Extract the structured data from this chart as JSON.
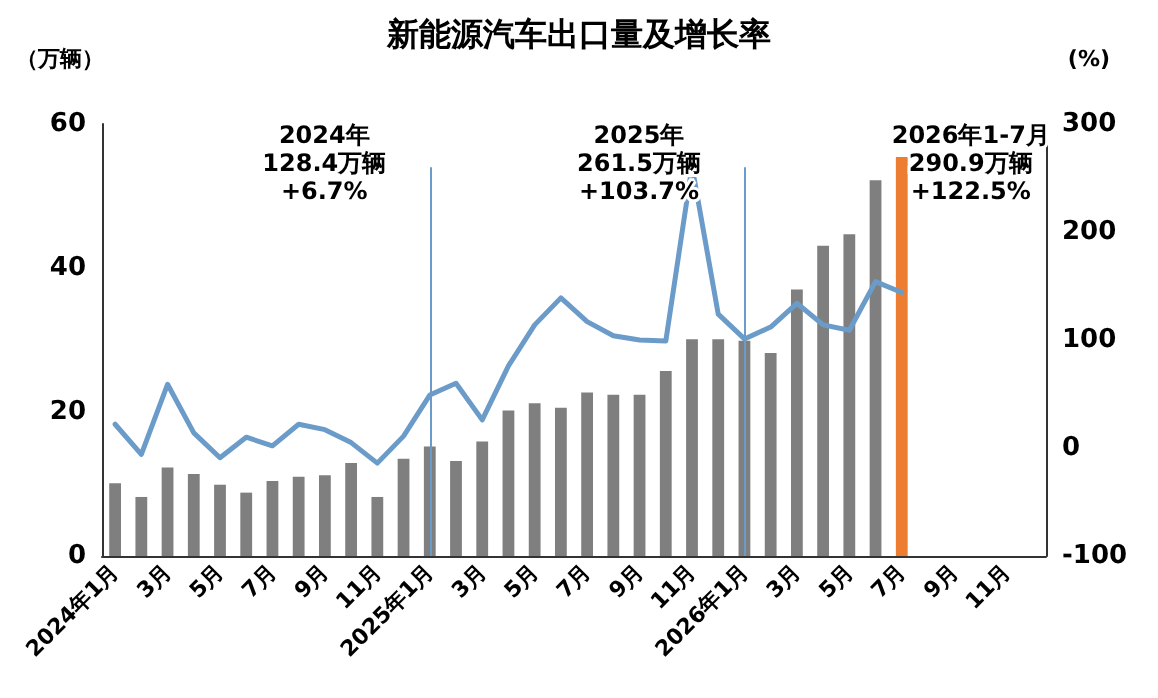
{
  "chart_data": {
    "type": "bar",
    "title": "新能源汽车出口量及增长率",
    "ylabel": "（万辆）",
    "y2label": "(%)",
    "categories": [
      "2024年1月",
      null,
      "3月",
      null,
      "5月",
      null,
      "7月",
      null,
      "9月",
      null,
      "11月",
      null,
      "2025年1月",
      null,
      "3月",
      null,
      "5月",
      null,
      "7月",
      null,
      "9月",
      null,
      "11月",
      null,
      "2026年1月",
      null,
      "3月",
      null,
      "5月",
      null,
      "7月",
      null,
      "9月",
      null,
      "11月",
      null
    ],
    "series": [
      {
        "color": "#7f7f7f",
        "colors": [
          "#7f7f7f",
          "#7f7f7f",
          "#7f7f7f",
          "#7f7f7f",
          "#7f7f7f",
          "#7f7f7f",
          "#7f7f7f",
          "#7f7f7f",
          "#7f7f7f",
          "#7f7f7f",
          "#7f7f7f",
          "#7f7f7f",
          "#7f7f7f",
          "#7f7f7f",
          "#7f7f7f",
          "#7f7f7f",
          "#7f7f7f",
          "#7f7f7f",
          "#7f7f7f",
          "#7f7f7f",
          "#7f7f7f",
          "#7f7f7f",
          "#7f7f7f",
          "#7f7f7f",
          "#7f7f7f",
          "#7f7f7f",
          "#7f7f7f",
          "#7f7f7f",
          "#7f7f7f",
          "#7f7f7f",
          "#ed7d31",
          null,
          null,
          null,
          null,
          null
        ],
        "values": [
          10.1,
          8.2,
          12.3,
          11.4,
          9.9,
          8.8,
          10.4,
          11.0,
          11.2,
          12.9,
          8.2,
          13.5,
          15.2,
          13.2,
          15.9,
          20.2,
          21.2,
          20.6,
          22.7,
          22.4,
          22.4,
          25.7,
          30.1,
          30.1,
          29.9,
          28.2,
          37.0,
          43.1,
          44.7,
          52.2,
          55.4,
          null,
          null,
          null,
          null,
          null
        ]
      },
      {
        "type": "line",
        "axis": "y2",
        "color": "#6b9bc9",
        "values": [
          22,
          -6,
          59,
          14,
          -9,
          10,
          2,
          22,
          17,
          5,
          -14,
          11,
          49,
          60,
          26,
          76,
          114,
          139,
          117,
          104,
          100,
          99,
          261,
          124,
          101,
          112,
          134,
          114,
          109,
          154,
          144,
          null,
          null,
          null,
          null,
          null
        ]
      }
    ],
    "ylim": [
      0,
      60
    ],
    "yticks": [
      0,
      20,
      40,
      60
    ],
    "y2lim": [
      -100,
      300
    ],
    "y2ticks": [
      -100,
      0,
      100,
      200,
      300
    ],
    "ref_lines": [
      {
        "axis": "x",
        "value": "2025年1月",
        "color": "#6b9bc9"
      },
      {
        "axis": "x",
        "value": "2026年1月",
        "color": "#6b9bc9"
      }
    ],
    "annotations": [
      "2024年\n128.4万辆\n+6.7%",
      "2025年\n261.5万辆\n+103.7%",
      "2026年1-7月\n290.9万辆\n+122.5%"
    ],
    "grid": false,
    "marker": "none",
    "line_style": "solid"
  }
}
